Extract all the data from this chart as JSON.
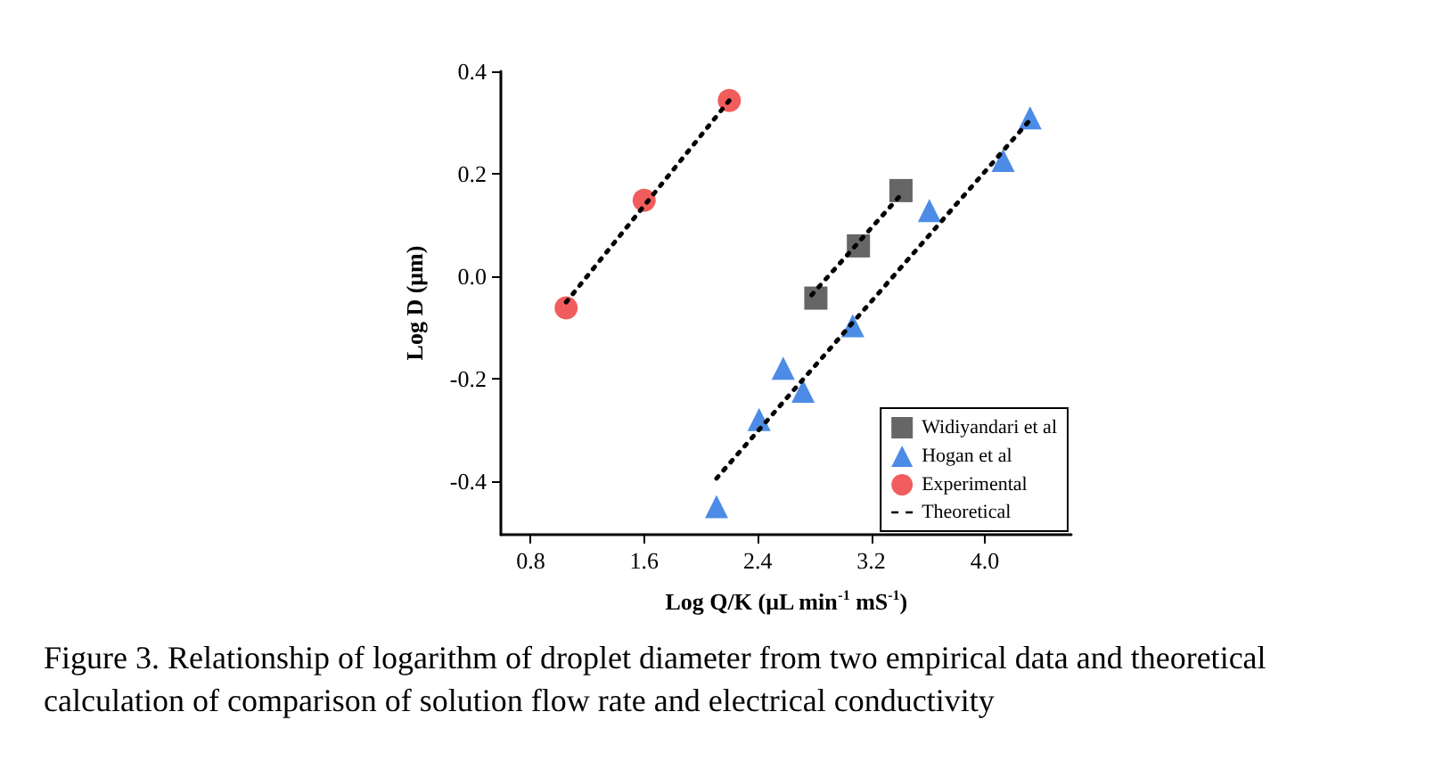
{
  "chart_data": {
    "type": "scatter",
    "xlabel": "Log Q/K (μL min$^{-1}$ mS$^{-1}$)",
    "ylabel": "Log D (μm)",
    "xlim": [
      0.59,
      4.61
    ],
    "ylim": [
      -0.505,
      0.4
    ],
    "xticks": [
      0.8,
      1.6,
      2.4,
      3.2,
      {
        "value": 4,
        "label": "4.0"
      }
    ],
    "yticks": [
      -0.4,
      -0.2,
      {
        "value": 0,
        "label": "0.0"
      },
      0.2,
      0.4
    ],
    "grid": false,
    "legend": "bottom right",
    "series": [
      {
        "name": "Widiyandari et al",
        "color": "#404040",
        "marker": "square",
        "x": [
          2.81,
          3.11,
          3.41
        ],
        "values": [
          -0.043,
          0.059,
          0.167
        ]
      },
      {
        "name": "Hogan et al",
        "color": "#1f6fe0",
        "marker": "triangle",
        "x": [
          2.11,
          2.41,
          2.58,
          2.72,
          3.07,
          3.61,
          4.13,
          4.32
        ],
        "values": [
          -0.45,
          -0.28,
          -0.18,
          -0.225,
          -0.097,
          0.128,
          0.226,
          0.309
        ]
      },
      {
        "name": "Experimental",
        "color": "#ee3333",
        "marker": "circle",
        "x": [
          1.05,
          1.6,
          2.2
        ],
        "values": [
          -0.062,
          0.148,
          0.343
        ]
      },
      {
        "name": "Theoretical",
        "type": "line",
        "color": "#000000",
        "marker": "none",
        "line_style": "dotted",
        "x": [
          1.05,
          2.2
        ],
        "values": [
          -0.051,
          0.343
        ]
      },
      {
        "type": "line",
        "color": "#000000",
        "marker": "none",
        "line_style": "dotted",
        "x": [
          2.78,
          3.41
        ],
        "values": [
          -0.037,
          0.159
        ]
      },
      {
        "type": "line",
        "color": "#000000",
        "marker": "none",
        "line_style": "dotted",
        "x": [
          2.11,
          4.32
        ],
        "values": [
          -0.395,
          0.305
        ]
      }
    ],
    "annotations": [
      "Figure 3. Relationship of logarithm of droplet diameter from two empirical data and theoretical calculation of comparison of solution flow rate and electrical conductivity"
    ]
  }
}
